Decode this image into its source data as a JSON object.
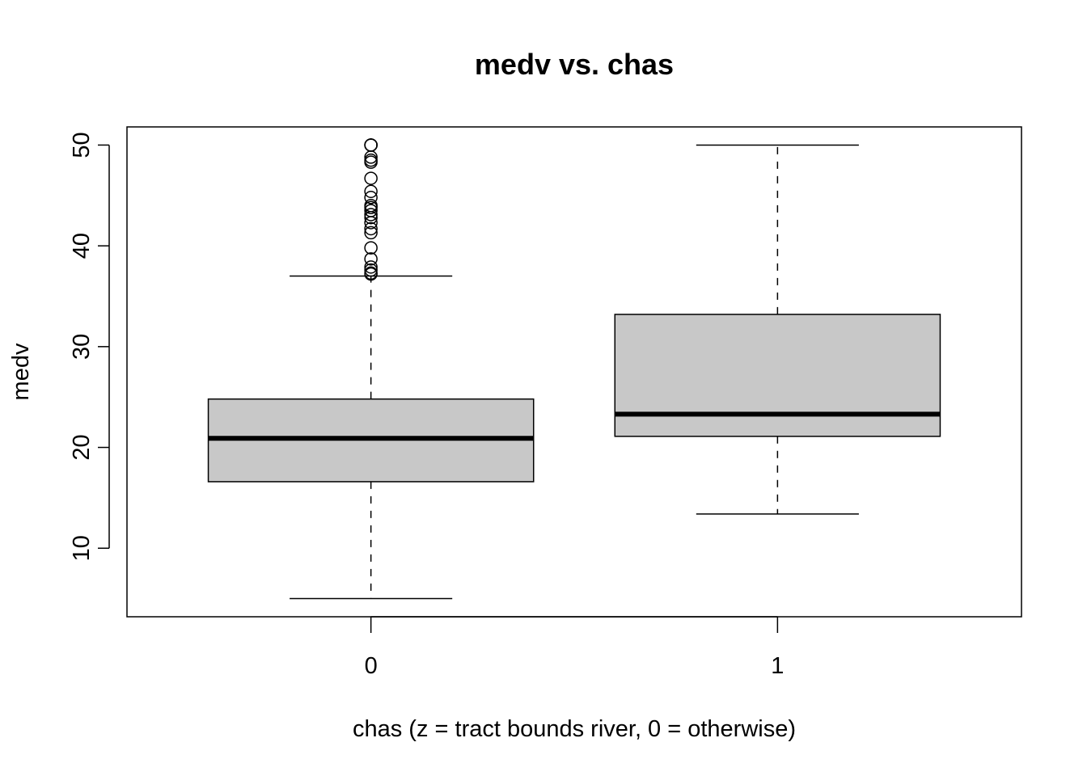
{
  "chart_data": {
    "type": "box",
    "title": "medv vs. chas",
    "xlabel": "chas (z = tract bounds river, 0 = otherwise)",
    "ylabel": "medv",
    "ylim": [
      3.2,
      51.8
    ],
    "y_ticks": [
      10,
      20,
      30,
      40,
      50
    ],
    "y_tick_labels": [
      "10",
      "20",
      "30",
      "40",
      "50"
    ],
    "grid": false,
    "legend": "none",
    "box_fill": "#c8c8c8",
    "categories": [
      "0",
      "1"
    ],
    "boxes": [
      {
        "category": "0",
        "whisker_low": 5.0,
        "q1": 16.6,
        "median": 20.9,
        "q3": 24.8,
        "whisker_high": 37.0,
        "outliers": [
          37.2,
          37.3,
          37.6,
          37.9,
          38.7,
          39.8,
          41.3,
          41.7,
          42.3,
          42.8,
          43.1,
          43.5,
          43.8,
          44.0,
          44.8,
          45.4,
          46.7,
          48.3,
          48.5,
          48.8,
          50.0,
          50.0,
          50.0,
          50.0
        ]
      },
      {
        "category": "1",
        "whisker_low": 13.4,
        "q1": 21.1,
        "median": 23.3,
        "q3": 33.2,
        "whisker_high": 50.0,
        "outliers": []
      }
    ]
  }
}
